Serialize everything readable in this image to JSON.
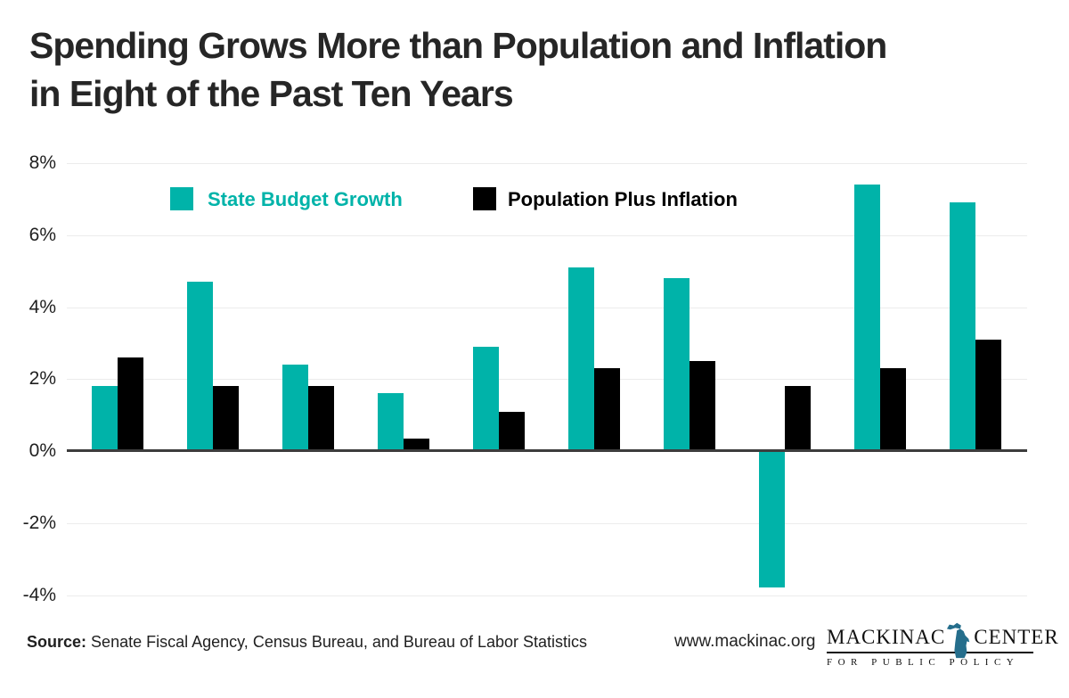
{
  "header": {
    "title_line1": "Spending Grows More than Population and Inflation",
    "title_line2": "in Eight of the Past Ten Years"
  },
  "chart_data": {
    "type": "bar",
    "title": "Spending Grows More than Population and Inflation in Eight of the Past Ten Years",
    "xlabel": "",
    "ylabel": "",
    "x_axis_labels_visible": false,
    "num_groups": 10,
    "yticks": [
      8,
      6,
      4,
      2,
      0,
      -2,
      -4
    ],
    "ytick_suffix": "%",
    "ylim": [
      -4.6,
      8.4
    ],
    "grid": true,
    "legend_position": "top-inside",
    "series": [
      {
        "name": "State Budget Growth",
        "color": "#00b3a9",
        "values": [
          1.8,
          4.7,
          2.4,
          1.6,
          2.9,
          5.1,
          4.8,
          -3.8,
          7.4,
          6.9
        ]
      },
      {
        "name": "Population Plus Inflation",
        "color": "#000000",
        "values": [
          2.6,
          1.8,
          1.8,
          0.35,
          1.1,
          2.3,
          2.5,
          1.8,
          2.3,
          3.1
        ]
      }
    ]
  },
  "footer": {
    "source_label": "Source:",
    "source_text": "Senate Fiscal Agency, Census Bureau, and Bureau of Labor Statistics",
    "website": "www.mackinac.org",
    "logo": {
      "name_left": "MACKINAC",
      "name_right": "CENTER",
      "tagline": "FOR PUBLIC POLICY",
      "michigan_icon_color": "#256e8c"
    }
  },
  "colors": {
    "accent_teal": "#00b3a9",
    "bar_black": "#000000",
    "gridline": "#ececec",
    "axis_line": "#3d3d3d",
    "text": "#1f1f1f"
  }
}
